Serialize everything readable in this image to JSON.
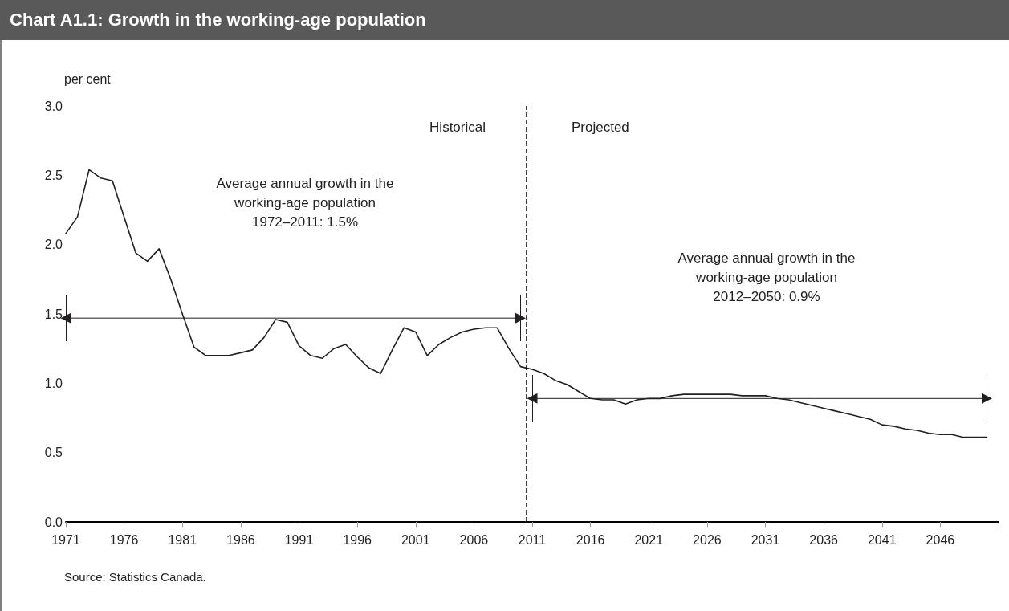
{
  "chart_data": {
    "type": "line",
    "title": "Chart A1.1: Growth in the working-age population",
    "ylabel": "per cent",
    "xlim": [
      1971,
      2051
    ],
    "xticks": [
      1971,
      1976,
      1981,
      1986,
      1991,
      1996,
      2001,
      2006,
      2011,
      2016,
      2021,
      2026,
      2031,
      2036,
      2041,
      2046,
      {
        "value": 2051,
        "label": null
      }
    ],
    "ylim": [
      0,
      3
    ],
    "yticks": [
      {
        "value": 0,
        "label": "0.0"
      },
      {
        "value": 0.5,
        "label": "0.5"
      },
      {
        "value": 1,
        "label": "1.0"
      },
      {
        "value": 1.5,
        "label": "1.5"
      },
      {
        "value": 2,
        "label": "2.0"
      },
      {
        "value": 2.5,
        "label": "2.5"
      },
      {
        "value": 3,
        "label": "3.0"
      }
    ],
    "grid": false,
    "marker": "none",
    "line_style": "solid",
    "series": [
      {
        "color": "#231f20",
        "x": [
          1971,
          1972,
          1973,
          1974,
          1975,
          1976,
          1977,
          1978,
          1979,
          1980,
          1981,
          1982,
          1983,
          1984,
          1985,
          1986,
          1987,
          1988,
          1989,
          1990,
          1991,
          1992,
          1993,
          1994,
          1995,
          1996,
          1997,
          1998,
          1999,
          2000,
          2001,
          2002,
          2003,
          2004,
          2005,
          2006,
          2007,
          2008,
          2009,
          2010,
          2011,
          2012,
          2013,
          2014,
          2015,
          2016,
          2017,
          2018,
          2019,
          2020,
          2021,
          2022,
          2023,
          2024,
          2025,
          2026,
          2027,
          2028,
          2029,
          2030,
          2031,
          2032,
          2033,
          2034,
          2035,
          2036,
          2037,
          2038,
          2039,
          2040,
          2041,
          2042,
          2043,
          2044,
          2045,
          2046,
          2047,
          2048,
          2049,
          2050
        ],
        "values": [
          2.08,
          2.2,
          2.54,
          2.48,
          2.46,
          2.2,
          1.94,
          1.88,
          1.97,
          1.75,
          1.5,
          1.26,
          1.2,
          1.2,
          1.2,
          1.22,
          1.24,
          1.33,
          1.46,
          1.44,
          1.27,
          1.2,
          1.18,
          1.25,
          1.28,
          1.19,
          1.11,
          1.07,
          1.24,
          1.4,
          1.37,
          1.2,
          1.28,
          1.33,
          1.37,
          1.39,
          1.4,
          1.4,
          1.25,
          1.12,
          1.1,
          1.07,
          1.02,
          0.99,
          0.94,
          0.89,
          0.88,
          0.88,
          0.85,
          0.88,
          0.89,
          0.89,
          0.91,
          0.92,
          0.92,
          0.92,
          0.92,
          0.92,
          0.91,
          0.91,
          0.91,
          0.89,
          0.88,
          0.86,
          0.84,
          0.82,
          0.8,
          0.78,
          0.76,
          0.74,
          0.7,
          0.69,
          0.67,
          0.66,
          0.64,
          0.63,
          0.63,
          0.61,
          0.61,
          0.61
        ]
      },
      {
        "color": "#231f20",
        "marker": "triangle",
        "x": [
          1971,
          2010
        ],
        "values": [
          1.47,
          1.47
        ]
      },
      {
        "color": "#231f20",
        "marker": "triangle",
        "x": [
          2011,
          2050
        ],
        "values": [
          0.89,
          0.89
        ]
      }
    ],
    "ref_lines": [
      {
        "axis": "x",
        "value": 2010.5,
        "label": null,
        "color": "#000000",
        "line_style": "dashed"
      }
    ],
    "annotations": [
      "Historical",
      "Projected",
      "Average annual growth in the\nworking-age population\n1972–2011: 1.5%",
      "Average annual growth in the\nworking-age population\n2012–2050: 0.9%",
      "Source: Statistics Canada."
    ]
  }
}
